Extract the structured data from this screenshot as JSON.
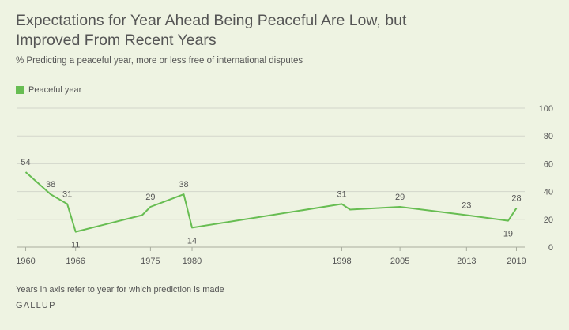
{
  "title": "Expectations for Year Ahead Being Peaceful Are Low, but Improved From Recent Years",
  "subtitle": "% Predicting a peaceful year, more or less free of international disputes",
  "footnote": "Years in axis refer to year for which prediction is made",
  "source": "GALLUP",
  "colors": {
    "line": "#67bd52",
    "grid": "#d3d6cb",
    "text": "#555555",
    "background": "#eef3e2"
  },
  "chart_data": {
    "type": "line",
    "ylim": [
      0,
      100
    ],
    "yticks": [
      0,
      20,
      40,
      60,
      80,
      100
    ],
    "xlim": [
      1959,
      2020
    ],
    "xticks": [
      1960,
      1966,
      1975,
      1980,
      1998,
      2005,
      2013,
      2019
    ],
    "grid": true,
    "legend_position": "top-left",
    "series": [
      {
        "name": "Peaceful year",
        "points": [
          {
            "x": 1960,
            "y": 54,
            "label": "54"
          },
          {
            "x": 1963,
            "y": 38,
            "label": "38"
          },
          {
            "x": 1965,
            "y": 31,
            "label": "31"
          },
          {
            "x": 1966,
            "y": 11,
            "label": "11"
          },
          {
            "x": 1974,
            "y": 23
          },
          {
            "x": 1975,
            "y": 29,
            "label": "29"
          },
          {
            "x": 1979,
            "y": 38,
            "label": "38"
          },
          {
            "x": 1980,
            "y": 14,
            "label": "14"
          },
          {
            "x": 1998,
            "y": 31,
            "label": "31"
          },
          {
            "x": 1999,
            "y": 27
          },
          {
            "x": 2005,
            "y": 29,
            "label": "29"
          },
          {
            "x": 2013,
            "y": 23,
            "label": "23"
          },
          {
            "x": 2018,
            "y": 19,
            "label": "19"
          },
          {
            "x": 2019,
            "y": 28,
            "label": "28"
          }
        ]
      }
    ]
  }
}
